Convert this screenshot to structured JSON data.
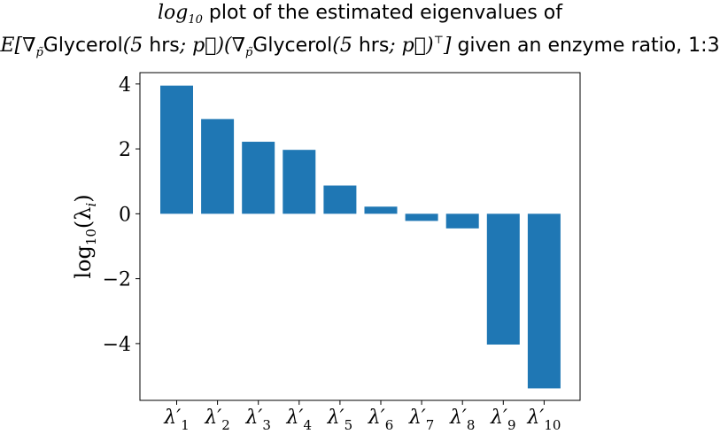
{
  "chart_data": {
    "type": "bar",
    "title_line1_suffix": "plot of the estimated eigenvalues of",
    "title_line2_text": "given an enzyme ratio, 1:3",
    "ylabel": "log10(λi)",
    "categories": [
      "λ'1",
      "λ'2",
      "λ'3",
      "λ'4",
      "λ'5",
      "λ'6",
      "λ'7",
      "λ'8",
      "λ'9",
      "λ'10"
    ],
    "category_subscripts": [
      "1",
      "2",
      "3",
      "4",
      "5",
      "6",
      "7",
      "8",
      "9",
      "10"
    ],
    "values": [
      3.95,
      2.92,
      2.22,
      1.97,
      0.87,
      0.22,
      -0.22,
      -0.45,
      -4.03,
      -5.38
    ],
    "ylim": [
      -5.75,
      4.35
    ],
    "yticks": [
      4,
      2,
      0,
      -2,
      -4
    ],
    "bar_color": "#1f77b4",
    "grid": false
  }
}
